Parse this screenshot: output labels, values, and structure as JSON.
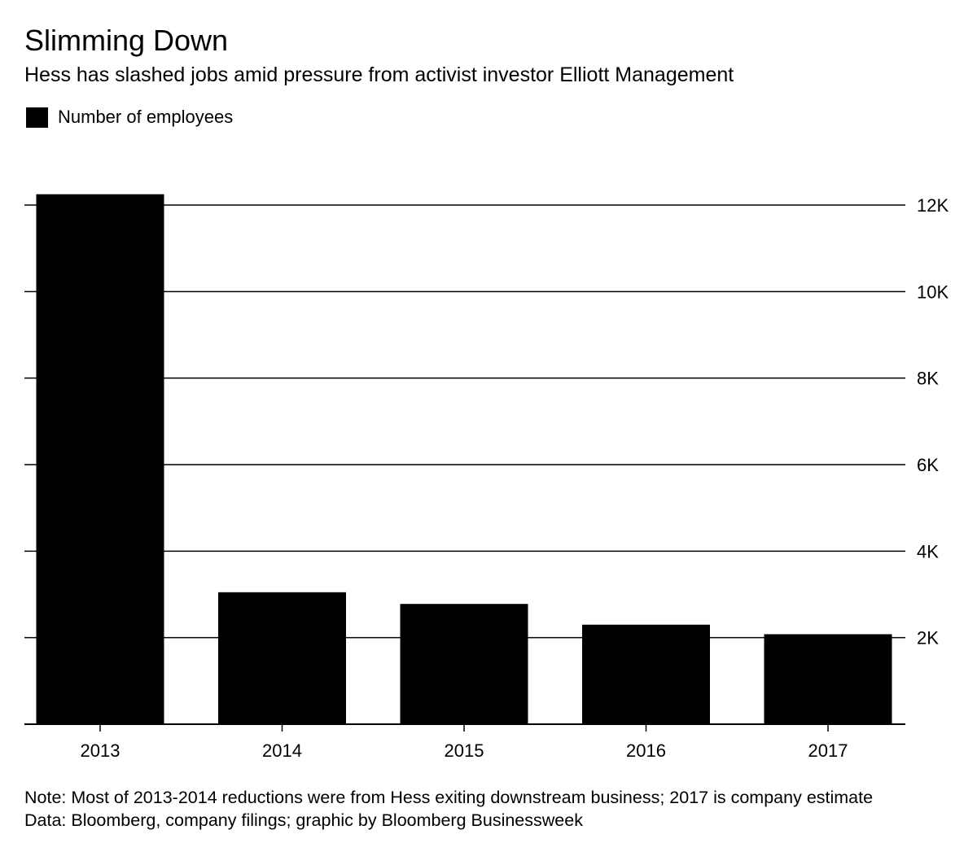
{
  "header": {
    "title": "Slimming Down",
    "subtitle": "Hess has slashed jobs amid pressure from activist investor Elliott Management"
  },
  "legend": {
    "label": "Number of employees"
  },
  "footer": {
    "note": "Note: Most of 2013-2014 reductions were from Hess exiting downstream business; 2017 is company estimate",
    "source": "Data: Bloomberg, company filings; graphic by Bloomberg Businessweek"
  },
  "chart_data": {
    "type": "bar",
    "title": "Slimming Down",
    "subtitle": "Hess has slashed jobs amid pressure from activist investor Elliott Management",
    "categories": [
      "2013",
      "2014",
      "2015",
      "2016",
      "2017"
    ],
    "series": [
      {
        "name": "Number of employees",
        "values": [
          12250,
          3050,
          2780,
          2300,
          2080
        ],
        "color": "#000000"
      }
    ],
    "ylim": [
      0,
      12000
    ],
    "y_ticks": [
      2000,
      4000,
      6000,
      8000,
      10000,
      12000
    ],
    "y_tick_labels": [
      "2K",
      "4K",
      "6K",
      "8K",
      "10K",
      "12K"
    ],
    "y_axis_position": "right",
    "grid": true,
    "legend_position": "top-left",
    "xlabel": "",
    "ylabel": ""
  }
}
